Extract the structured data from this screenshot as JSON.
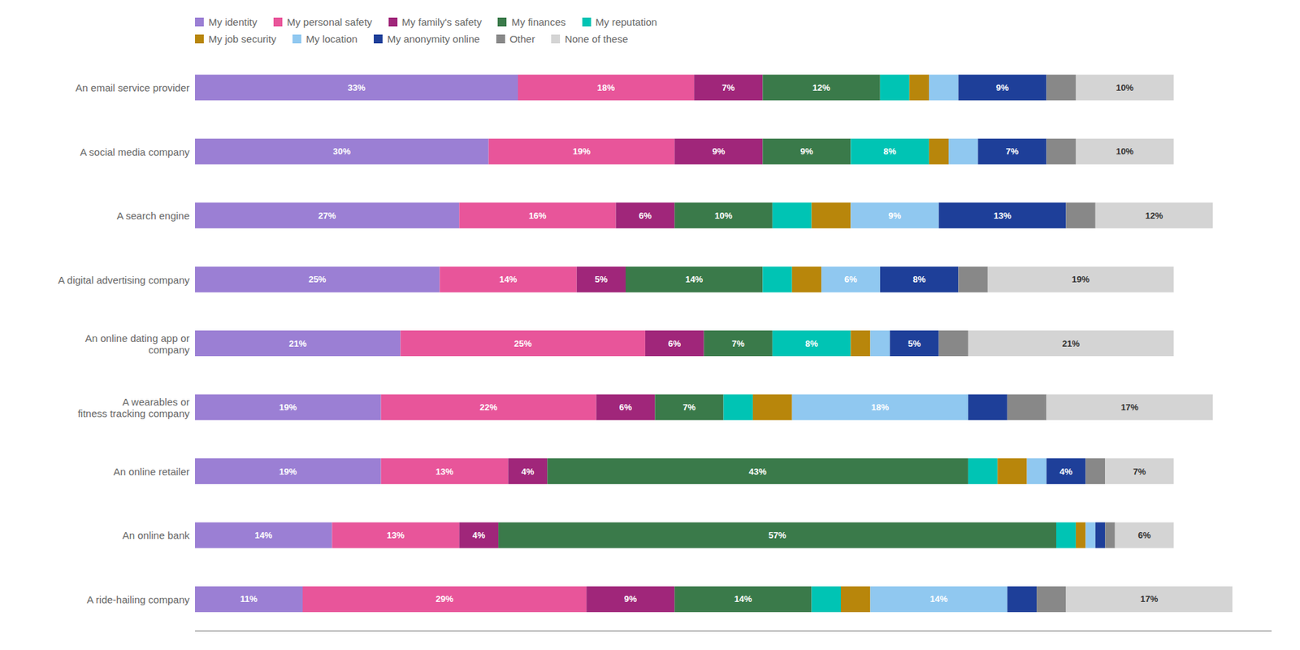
{
  "chart_data": {
    "type": "bar",
    "orientation": "horizontal",
    "stacked": true,
    "data_labels": true,
    "grid": false,
    "legend": "top-left",
    "tick_labels": "y",
    "categories": [
      "An email service provider",
      "A social media company",
      "A search engine",
      "A digital advertising company",
      "An online dating app or\ncompany",
      "A wearables or\nfitness tracking company",
      "An online retailer",
      "An online bank",
      "A ride-hailing company"
    ],
    "xlim": [
      0,
      110
    ],
    "series": [
      {
        "name": "My identity",
        "color": "#9B7FD4",
        "values": [
          33,
          30,
          27,
          25,
          21,
          19,
          19,
          14,
          11
        ],
        "value_labels": [
          "33%",
          "30%",
          "27%",
          "25%",
          "21%",
          "19%",
          "19%",
          "14%",
          "11%"
        ]
      },
      {
        "name": "My personal safety",
        "color": "#E8559A",
        "values": [
          18,
          19,
          16,
          14,
          25,
          22,
          13,
          13,
          29
        ],
        "value_labels": [
          "18%",
          "19%",
          "16%",
          "14%",
          "25%",
          "22%",
          "13%",
          "13%",
          "29%"
        ]
      },
      {
        "name": "My family's safety",
        "color": "#A0267A",
        "values": [
          7,
          9,
          6,
          5,
          6,
          6,
          4,
          4,
          9
        ],
        "value_labels": [
          "7%",
          "9%",
          "6%",
          "5%",
          "6%",
          "6%",
          "4%",
          "4%",
          "9%"
        ]
      },
      {
        "name": "My finances",
        "color": "#3A7A4A",
        "values": [
          12,
          9,
          10,
          14,
          7,
          7,
          43,
          57,
          14
        ],
        "value_labels": [
          "12%",
          "9%",
          "10%",
          "14%",
          "7%",
          "7%",
          "43%",
          "57%",
          "14%"
        ]
      },
      {
        "name": "My reputation",
        "color": "#00C4B4",
        "values": [
          3,
          8,
          4,
          3,
          8,
          3,
          3,
          2,
          3
        ],
        "value_labels": [
          null,
          "8%",
          null,
          null,
          "8%",
          null,
          null,
          null,
          null
        ]
      },
      {
        "name": "My job security",
        "color": "#B8860B",
        "values": [
          2,
          2,
          4,
          3,
          2,
          4,
          3,
          1,
          3
        ],
        "value_labels": [
          null,
          null,
          null,
          null,
          null,
          null,
          null,
          null,
          null
        ]
      },
      {
        "name": "My location",
        "color": "#90C8F0",
        "values": [
          3,
          3,
          9,
          6,
          2,
          18,
          2,
          1,
          14
        ],
        "value_labels": [
          null,
          null,
          "9%",
          "6%",
          null,
          "18%",
          null,
          null,
          "14%"
        ]
      },
      {
        "name": "My anonymity online",
        "color": "#1E3F99",
        "values": [
          9,
          7,
          13,
          8,
          5,
          4,
          4,
          1,
          3
        ],
        "value_labels": [
          "9%",
          "7%",
          "13%",
          "8%",
          "5%",
          null,
          "4%",
          null,
          null
        ]
      },
      {
        "name": "Other",
        "color": "#888888",
        "values": [
          3,
          3,
          3,
          3,
          3,
          4,
          2,
          1,
          3
        ],
        "value_labels": [
          null,
          null,
          null,
          null,
          null,
          null,
          null,
          null,
          null
        ]
      },
      {
        "name": "None of these",
        "color": "#D4D4D4",
        "values": [
          10,
          10,
          12,
          19,
          21,
          17,
          7,
          6,
          17
        ],
        "value_labels": [
          "10%",
          "10%",
          "12%",
          "19%",
          "21%",
          "17%",
          "7%",
          "6%",
          "17%"
        ]
      }
    ]
  }
}
